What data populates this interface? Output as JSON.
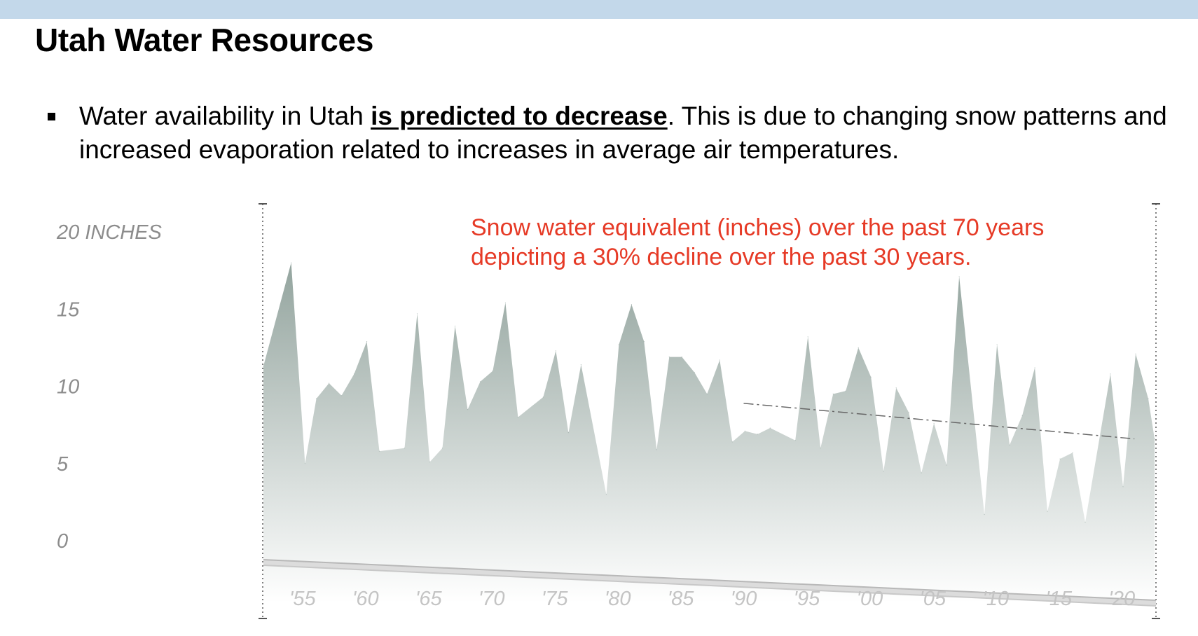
{
  "header": {
    "title": "Utah Water Resources"
  },
  "bullet": {
    "text_before": "Water availability in Utah ",
    "emphasis": "is predicted to decrease",
    "text_after": ". This is due to changing snow patterns and increased evaporation related to increases in average air temperatures."
  },
  "colors": {
    "top_bar": "#c3d8ea",
    "area_top": "#93a49e",
    "area_bottom": "#ffffff",
    "annotation": "#e63a26",
    "trend": "#666666"
  },
  "chart_data": {
    "type": "area",
    "title": "",
    "xlabel": "",
    "ylabel": "",
    "ylim": [
      0,
      20
    ],
    "y_ticks": [
      {
        "value": 20,
        "label": "20 INCHES"
      },
      {
        "value": 15,
        "label": "15"
      },
      {
        "value": 10,
        "label": "10"
      },
      {
        "value": 5,
        "label": "5"
      },
      {
        "value": 0,
        "label": "0"
      }
    ],
    "x_ticks": [
      {
        "value": 1955,
        "label": "'55"
      },
      {
        "value": 1960,
        "label": "'60"
      },
      {
        "value": 1965,
        "label": "'65"
      },
      {
        "value": 1970,
        "label": "'70"
      },
      {
        "value": 1975,
        "label": "'75"
      },
      {
        "value": 1980,
        "label": "'80"
      },
      {
        "value": 1985,
        "label": "'85"
      },
      {
        "value": 1990,
        "label": "'90"
      },
      {
        "value": 1995,
        "label": "'95"
      },
      {
        "value": 2000,
        "label": "'00"
      },
      {
        "value": 2005,
        "label": "'05"
      },
      {
        "value": 2010,
        "label": "'10"
      },
      {
        "value": 2015,
        "label": "'15"
      },
      {
        "value": 2020,
        "label": "'20"
      }
    ],
    "annotation": [
      "Snow water equivalent (inches) over the past 70 years",
      "depicting a 30% decline over the past 30 years."
    ],
    "trend_line": {
      "x": [
        1990,
        2021
      ],
      "y": [
        8.9,
        6.6
      ]
    },
    "series": [
      {
        "values": [
          {
            "x": 1951.9,
            "y": 11.3
          },
          {
            "x": 1954.1,
            "y": 18.0
          },
          {
            "x": 1955.2,
            "y": 5.0
          },
          {
            "x": 1956.1,
            "y": 9.2
          },
          {
            "x": 1957.1,
            "y": 10.2
          },
          {
            "x": 1958.1,
            "y": 9.4
          },
          {
            "x": 1959.1,
            "y": 10.8
          },
          {
            "x": 1960.1,
            "y": 12.9
          },
          {
            "x": 1961.1,
            "y": 5.8
          },
          {
            "x": 1963.1,
            "y": 6.0
          },
          {
            "x": 1964.1,
            "y": 14.7
          },
          {
            "x": 1965.1,
            "y": 5.1
          },
          {
            "x": 1966.1,
            "y": 6.0
          },
          {
            "x": 1967.1,
            "y": 13.9
          },
          {
            "x": 1968.1,
            "y": 8.5
          },
          {
            "x": 1969.1,
            "y": 10.3
          },
          {
            "x": 1970.1,
            "y": 11.0
          },
          {
            "x": 1971.1,
            "y": 15.4
          },
          {
            "x": 1972.1,
            "y": 8.0
          },
          {
            "x": 1974.1,
            "y": 9.3
          },
          {
            "x": 1975.1,
            "y": 12.3
          },
          {
            "x": 1976.1,
            "y": 7.0
          },
          {
            "x": 1977.1,
            "y": 11.4
          },
          {
            "x": 1979.1,
            "y": 3.0
          },
          {
            "x": 1980.1,
            "y": 12.7
          },
          {
            "x": 1981.1,
            "y": 15.3
          },
          {
            "x": 1982.1,
            "y": 12.9
          },
          {
            "x": 1983.1,
            "y": 5.9
          },
          {
            "x": 1984.1,
            "y": 11.9
          },
          {
            "x": 1985.1,
            "y": 11.9
          },
          {
            "x": 1986.1,
            "y": 10.9
          },
          {
            "x": 1987.1,
            "y": 9.5
          },
          {
            "x": 1988.1,
            "y": 11.7
          },
          {
            "x": 1989.1,
            "y": 6.4
          },
          {
            "x": 1990.1,
            "y": 7.1
          },
          {
            "x": 1991.1,
            "y": 6.9
          },
          {
            "x": 1992.1,
            "y": 7.3
          },
          {
            "x": 1994.1,
            "y": 6.5
          },
          {
            "x": 1995.1,
            "y": 13.2
          },
          {
            "x": 1996.1,
            "y": 6.0
          },
          {
            "x": 1997.1,
            "y": 9.5
          },
          {
            "x": 1998.1,
            "y": 9.7
          },
          {
            "x": 1999.1,
            "y": 12.5
          },
          {
            "x": 2000.1,
            "y": 10.6
          },
          {
            "x": 2001.1,
            "y": 4.5
          },
          {
            "x": 2002.1,
            "y": 9.9
          },
          {
            "x": 2003.1,
            "y": 8.3
          },
          {
            "x": 2004.1,
            "y": 4.4
          },
          {
            "x": 2005.1,
            "y": 7.6
          },
          {
            "x": 2006.1,
            "y": 4.9
          },
          {
            "x": 2007.1,
            "y": 17.1
          },
          {
            "x": 2009.1,
            "y": 1.7
          },
          {
            "x": 2010.1,
            "y": 12.7
          },
          {
            "x": 2011.1,
            "y": 6.2
          },
          {
            "x": 2012.1,
            "y": 8.1
          },
          {
            "x": 2013.1,
            "y": 11.2
          },
          {
            "x": 2014.1,
            "y": 1.9
          },
          {
            "x": 2015.1,
            "y": 5.3
          },
          {
            "x": 2016.1,
            "y": 5.7
          },
          {
            "x": 2017.1,
            "y": 1.2
          },
          {
            "x": 2019.1,
            "y": 10.8
          },
          {
            "x": 2020.1,
            "y": 3.5
          },
          {
            "x": 2021.1,
            "y": 12.1
          },
          {
            "x": 2022.1,
            "y": 9.2
          },
          {
            "x": 2022.6,
            "y": 6.6
          }
        ]
      }
    ]
  }
}
